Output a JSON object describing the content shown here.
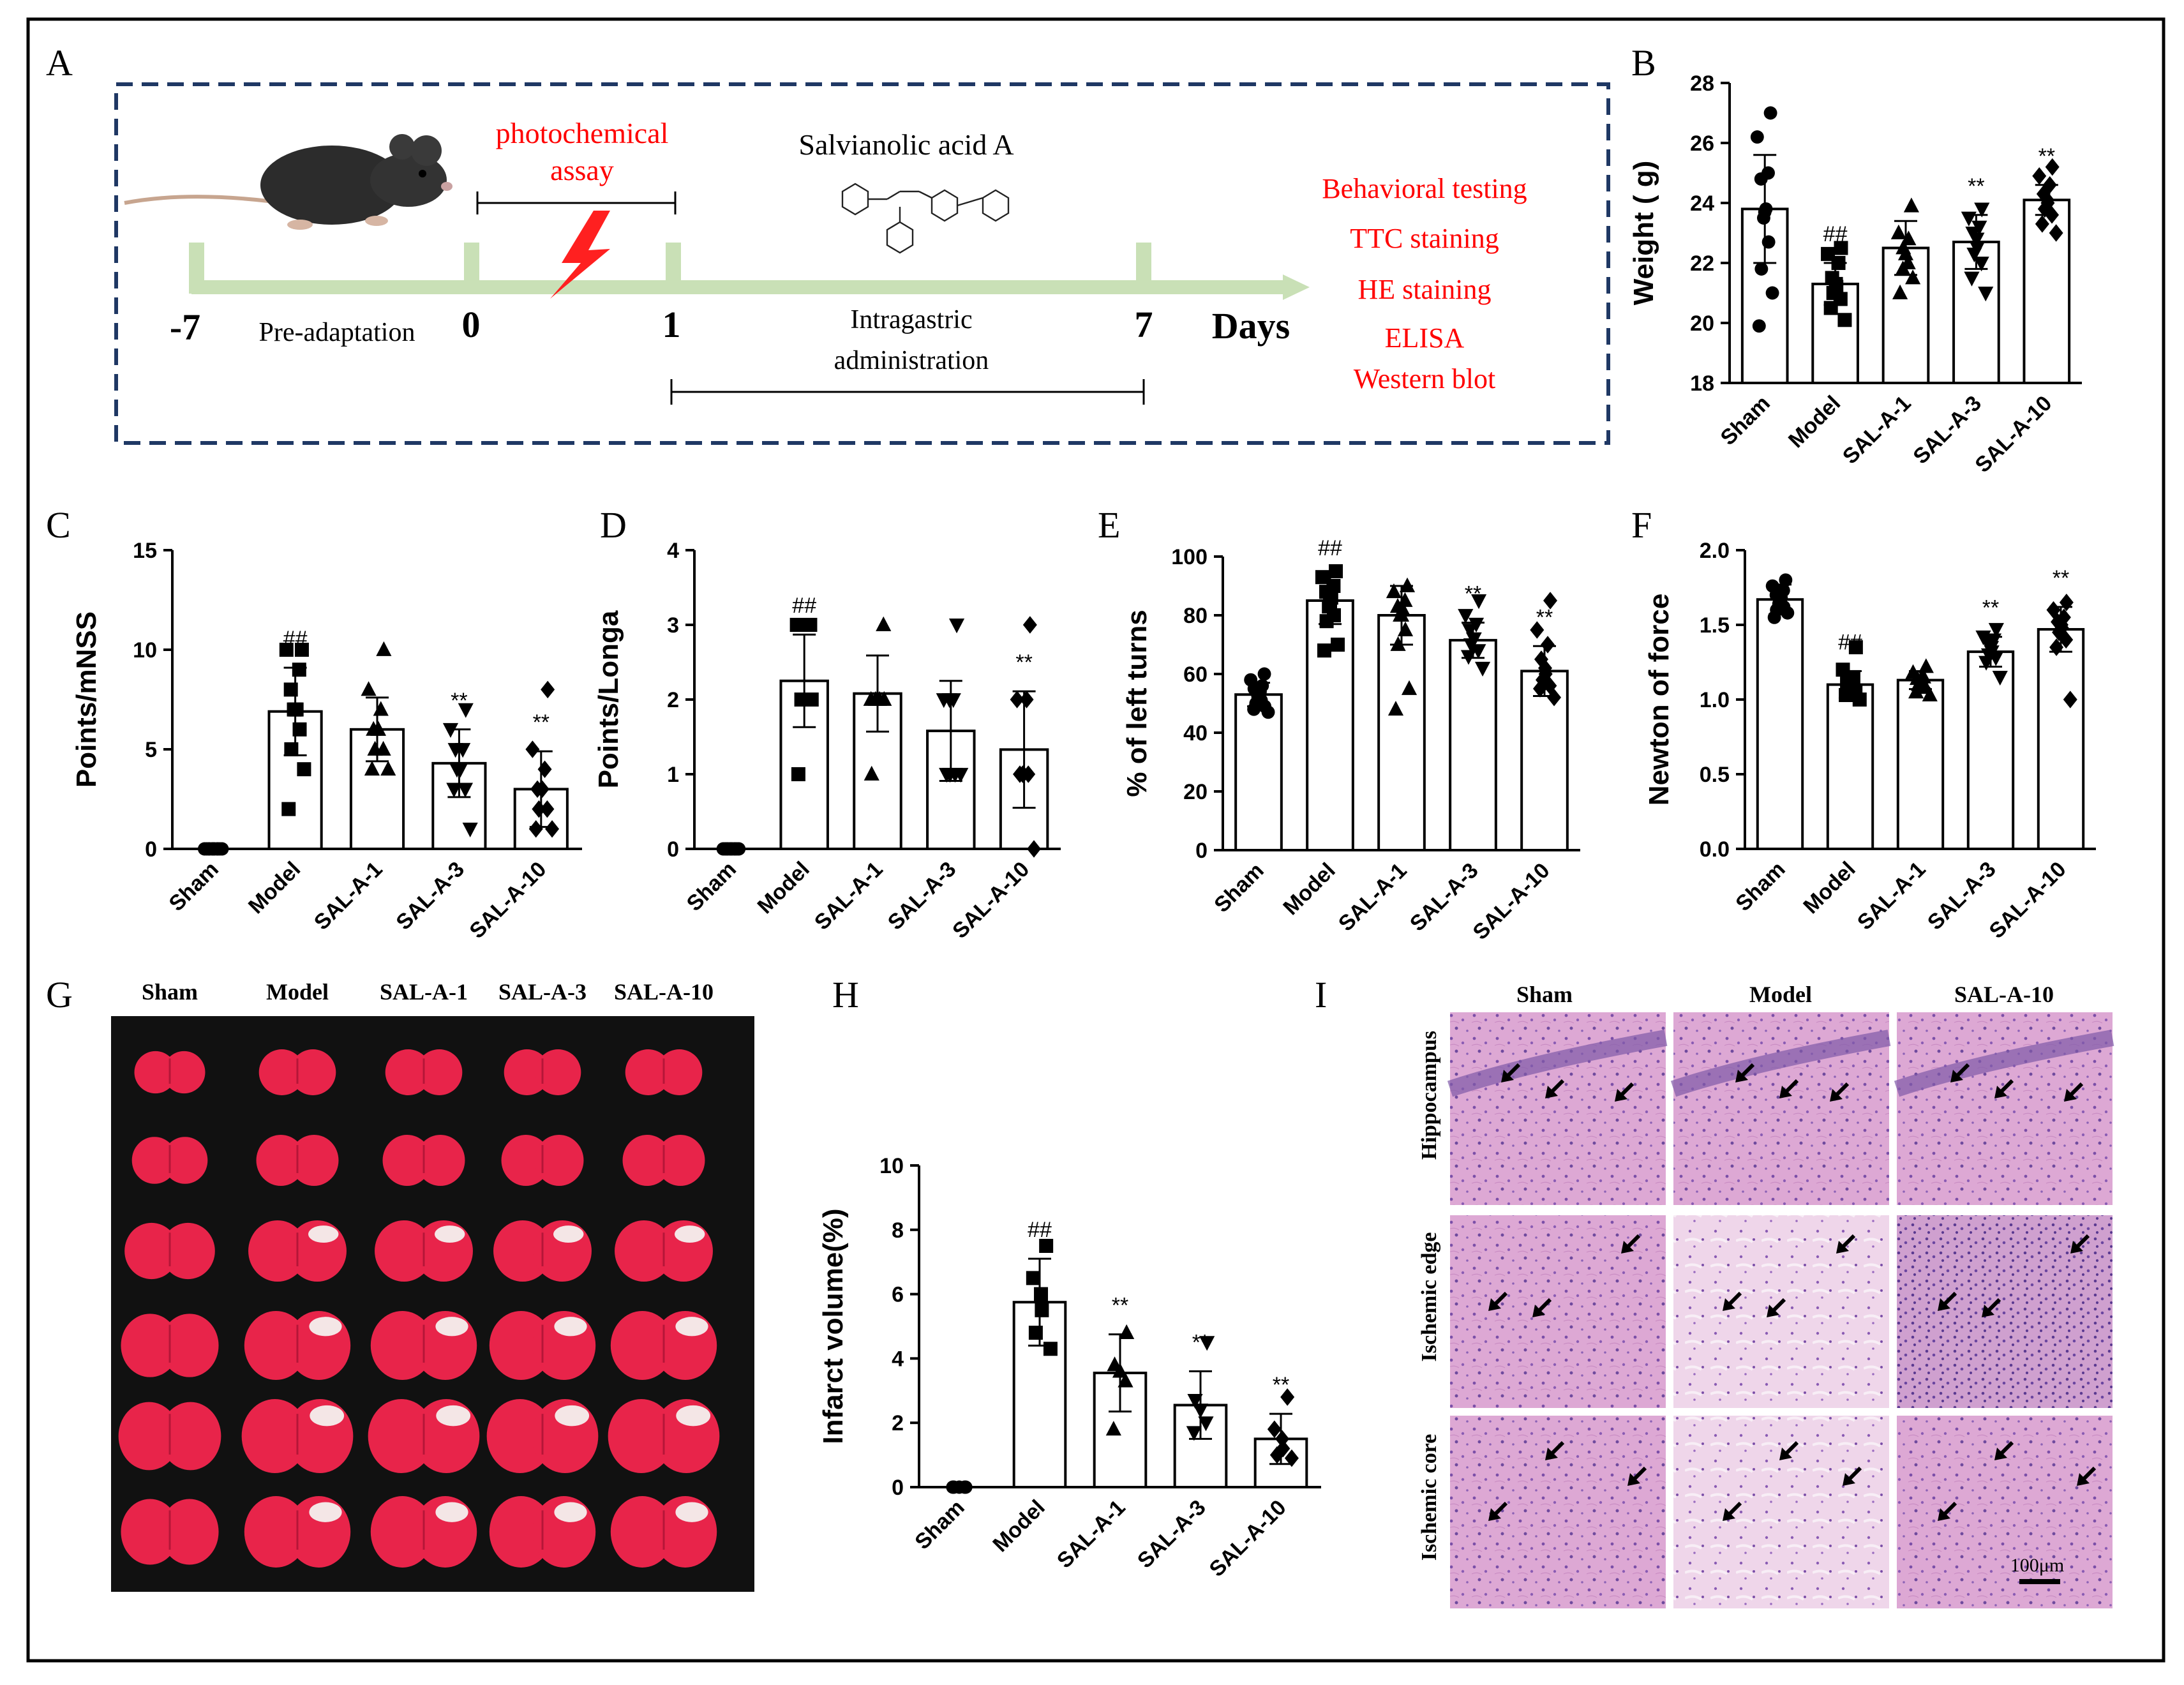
{
  "panel_letters": [
    "A",
    "B",
    "C",
    "D",
    "E",
    "F",
    "G",
    "H",
    "I"
  ],
  "timeline": {
    "days": [
      "-7",
      "0",
      "1",
      "7"
    ],
    "days_label": "Days",
    "pre_adaptation": "Pre-adaptation",
    "photochemical": [
      "photochemical",
      "assay"
    ],
    "compound": "Salvianolic  acid A",
    "intragastric": [
      "Intragastric",
      "administration"
    ],
    "outcomes": [
      "Behavioral testing",
      "TTC staining",
      "HE staining",
      "ELISA",
      "Western blot"
    ],
    "outcome_color": "#ff0000",
    "timeline_color": "#c9e0b6",
    "frame_color": "#1f3864"
  },
  "chart_data": [
    {
      "id": "B",
      "type": "bar",
      "title": "",
      "categories": [
        "Sham",
        "Model",
        "SAL-A-1",
        "SAL-A-3",
        "SAL-A-10"
      ],
      "values": [
        23.8,
        21.3,
        22.5,
        22.7,
        24.1
      ],
      "errors": [
        1.8,
        0.7,
        0.9,
        0.9,
        0.5
      ],
      "annotations": [
        "",
        "##",
        "",
        "**",
        "**"
      ],
      "points": [
        [
          27.0,
          26.2,
          25.0,
          24.8,
          23.8,
          23.7,
          23.5,
          22.7,
          21.8,
          21.0,
          19.9
        ],
        [
          22.5,
          22.3,
          22.0,
          21.5,
          21.3,
          21.2,
          21.0,
          20.8,
          20.5,
          20.1
        ],
        [
          23.9,
          23.0,
          22.8,
          22.5,
          22.3,
          22.0,
          21.8,
          21.5,
          21.0
        ],
        [
          23.8,
          23.5,
          23.2,
          23.0,
          22.8,
          22.5,
          22.3,
          22.0,
          21.5,
          21.0
        ],
        [
          25.2,
          24.9,
          24.6,
          24.3,
          24.1,
          24.0,
          23.8,
          23.6,
          23.3,
          23.0
        ]
      ],
      "markers": [
        "circle",
        "square",
        "triangle",
        "triangle-down",
        "diamond"
      ],
      "ylabel": "Weight ( g)",
      "xlabel": "",
      "ylim": [
        18,
        28
      ],
      "yticks": [
        "18",
        "20",
        "22",
        "24",
        "26",
        "28"
      ]
    },
    {
      "id": "C",
      "type": "bar",
      "title": "",
      "categories": [
        "Sham",
        "Model",
        "SAL-A-1",
        "SAL-A-3",
        "SAL-A-10"
      ],
      "values": [
        0,
        6.9,
        6.0,
        4.3,
        3.0
      ],
      "errors": [
        0,
        2.2,
        1.6,
        1.7,
        1.9
      ],
      "annotations": [
        "",
        "##",
        "",
        "**",
        "**"
      ],
      "points": [
        [
          0,
          0,
          0,
          0,
          0,
          0,
          0,
          0,
          0,
          0,
          0
        ],
        [
          10,
          10,
          9,
          8,
          7,
          7,
          7,
          6,
          5,
          4,
          2
        ],
        [
          10,
          8,
          7,
          6,
          6,
          6,
          5,
          5,
          4,
          4
        ],
        [
          7,
          6,
          5,
          5,
          4,
          4,
          4,
          3,
          3,
          1
        ],
        [
          8,
          5,
          4,
          3,
          3,
          3,
          2,
          2,
          1,
          1
        ]
      ],
      "markers": [
        "circle",
        "square",
        "triangle",
        "triangle-down",
        "diamond"
      ],
      "ylabel": "Points/mNSS",
      "xlabel": "",
      "ylim": [
        0,
        15
      ],
      "yticks": [
        "0",
        "5",
        "10",
        "15"
      ]
    },
    {
      "id": "D",
      "type": "bar",
      "title": "",
      "categories": [
        "Sham",
        "Model",
        "SAL-A-1",
        "SAL-A-3",
        "SAL-A-10"
      ],
      "values": [
        0,
        2.25,
        2.08,
        1.58,
        1.33
      ],
      "errors": [
        0,
        0.62,
        0.51,
        0.67,
        0.78
      ],
      "annotations": [
        "",
        "##",
        "",
        "",
        "**"
      ],
      "points": [
        [
          0,
          0,
          0,
          0,
          0,
          0,
          0,
          0,
          0,
          0,
          0
        ],
        [
          3,
          3,
          3,
          2,
          2,
          2,
          2,
          2,
          1
        ],
        [
          3,
          2,
          2,
          2,
          2,
          2,
          1
        ],
        [
          3,
          2,
          2,
          2,
          1,
          1,
          1,
          1
        ],
        [
          3,
          2,
          2,
          1,
          1,
          1,
          1,
          0
        ]
      ],
      "markers": [
        "circle",
        "square",
        "triangle",
        "triangle-down",
        "diamond"
      ],
      "ylabel": "Points/Longa",
      "xlabel": "",
      "ylim": [
        0,
        4
      ],
      "yticks": [
        "0",
        "1",
        "2",
        "3",
        "4"
      ]
    },
    {
      "id": "E",
      "type": "bar",
      "title": "",
      "categories": [
        "Sham",
        "Model",
        "SAL-A-1",
        "SAL-A-3",
        "SAL-A-10"
      ],
      "values": [
        53,
        85,
        80,
        71.5,
        61
      ],
      "errors": [
        4,
        8,
        10,
        6,
        8.5
      ],
      "annotations": [
        "",
        "##",
        "",
        "**",
        "**"
      ],
      "points": [
        [
          60,
          58,
          56,
          55,
          54,
          53,
          52,
          51,
          50,
          49,
          48,
          47
        ],
        [
          95,
          93,
          90,
          88,
          86,
          84,
          83,
          80,
          78,
          70,
          68
        ],
        [
          90,
          88,
          85,
          83,
          82,
          80,
          80,
          75,
          70,
          55,
          48
        ],
        [
          85,
          80,
          77,
          75,
          72,
          72,
          70,
          68,
          66,
          62
        ],
        [
          85,
          75,
          70,
          65,
          62,
          60,
          58,
          56,
          55,
          52
        ]
      ],
      "markers": [
        "circle",
        "square",
        "triangle",
        "triangle-down",
        "diamond"
      ],
      "ylabel": "% of left turns",
      "xlabel": "",
      "ylim": [
        0,
        100
      ],
      "yticks": [
        "0",
        "20",
        "40",
        "60",
        "80",
        "100"
      ]
    },
    {
      "id": "F",
      "type": "bar",
      "title": "",
      "categories": [
        "Sham",
        "Model",
        "SAL-A-1",
        "SAL-A-3",
        "SAL-A-10"
      ],
      "values": [
        1.67,
        1.1,
        1.13,
        1.32,
        1.47
      ],
      "errors": [
        0.1,
        0.09,
        0.06,
        0.1,
        0.15
      ],
      "annotations": [
        "",
        "##",
        "",
        "**",
        "**"
      ],
      "points": [
        [
          1.8,
          1.76,
          1.73,
          1.7,
          1.68,
          1.66,
          1.64,
          1.62,
          1.6,
          1.58,
          1.55
        ],
        [
          1.35,
          1.2,
          1.15,
          1.12,
          1.1,
          1.08,
          1.06,
          1.05,
          1.03,
          1.0
        ],
        [
          1.22,
          1.18,
          1.15,
          1.14,
          1.12,
          1.1,
          1.1,
          1.08,
          1.05,
          1.03
        ],
        [
          1.47,
          1.42,
          1.4,
          1.38,
          1.35,
          1.32,
          1.3,
          1.28,
          1.25,
          1.15
        ],
        [
          1.65,
          1.6,
          1.55,
          1.52,
          1.5,
          1.48,
          1.45,
          1.4,
          1.35,
          1.0
        ]
      ],
      "markers": [
        "circle",
        "square",
        "triangle",
        "triangle-down",
        "diamond"
      ],
      "ylabel": "Newton of force",
      "xlabel": "",
      "ylim": [
        0.0,
        2.0
      ],
      "yticks": [
        "0.0",
        "0.5",
        "1.0",
        "1.5",
        "2.0"
      ]
    },
    {
      "id": "H",
      "type": "bar",
      "title": "",
      "categories": [
        "Sham",
        "Model",
        "SAL-A-1",
        "SAL-A-3",
        "SAL-A-10"
      ],
      "values": [
        0,
        5.75,
        3.55,
        2.55,
        1.5
      ],
      "errors": [
        0,
        1.35,
        1.2,
        1.05,
        0.78
      ],
      "annotations": [
        "",
        "##",
        "**",
        "**",
        "**"
      ],
      "points": [
        [
          0,
          0,
          0,
          0,
          0
        ],
        [
          7.5,
          6.5,
          6.0,
          5.5,
          4.8,
          4.3
        ],
        [
          4.8,
          3.8,
          3.6,
          3.3,
          1.8
        ],
        [
          4.5,
          2.7,
          2.4,
          2.0,
          1.7
        ],
        [
          2.8,
          1.8,
          1.5,
          1.2,
          1.0,
          0.9
        ]
      ],
      "markers": [
        "circle",
        "square",
        "triangle",
        "triangle-down",
        "diamond"
      ],
      "ylabel": "Infarct volume(%)",
      "xlabel": "",
      "ylim": [
        0,
        10
      ],
      "yticks": [
        "0",
        "2",
        "4",
        "6",
        "8",
        "10"
      ]
    }
  ],
  "ttc": {
    "headers": [
      "Sham",
      "Model",
      "SAL-A-1",
      "SAL-A-3",
      "SAL-A-10"
    ],
    "background": "#111111",
    "tissue_color": "#e8244a"
  },
  "he": {
    "col_headers": [
      "Sham",
      "Model",
      "SAL-A-10"
    ],
    "row_headers": [
      "Hippocampus",
      "Ischemic edge",
      "Ischemic core"
    ],
    "scale_bar": "100μm",
    "tissue_color": "#dba6d2"
  }
}
